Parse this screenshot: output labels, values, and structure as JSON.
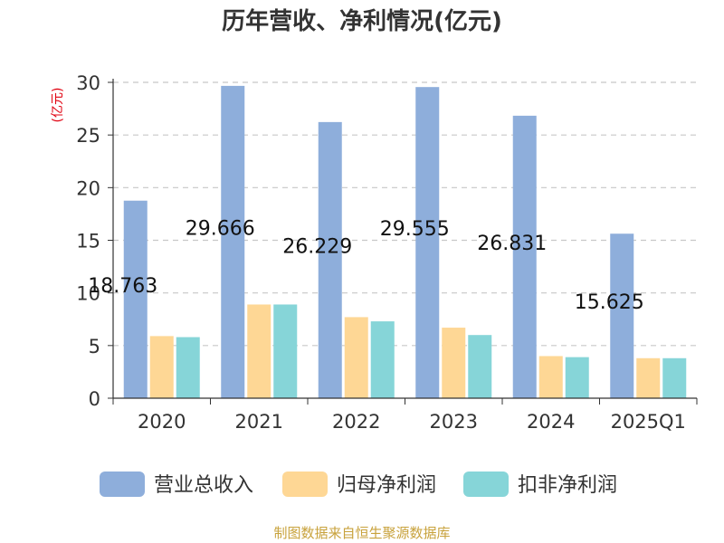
{
  "chart_data": {
    "type": "bar",
    "title": "历年营收、净利情况(亿元)",
    "ylabel": "(亿元)",
    "categories": [
      "2020",
      "2021",
      "2022",
      "2023",
      "2024",
      "2025Q1"
    ],
    "ylim": [
      0,
      30
    ],
    "yticks": [
      0,
      5,
      10,
      15,
      20,
      25,
      30
    ],
    "grid": true,
    "legend_position": "bottom",
    "series": [
      {
        "name": "营业总收入",
        "color": "#8eaedb",
        "values": [
          18.763,
          29.666,
          26.229,
          29.555,
          26.831,
          15.625
        ],
        "labels": [
          "18.763",
          "29.666",
          "26.229",
          "29.555",
          "26.831",
          "15.625"
        ]
      },
      {
        "name": "归母净利润",
        "color": "#fed795",
        "values": [
          5.9,
          8.9,
          7.7,
          6.7,
          4.0,
          3.8
        ]
      },
      {
        "name": "扣非净利润",
        "color": "#86d5d8",
        "values": [
          5.8,
          8.9,
          7.3,
          6.0,
          3.9,
          3.8
        ]
      }
    ]
  },
  "source": "制图数据来自恒生聚源数据库"
}
